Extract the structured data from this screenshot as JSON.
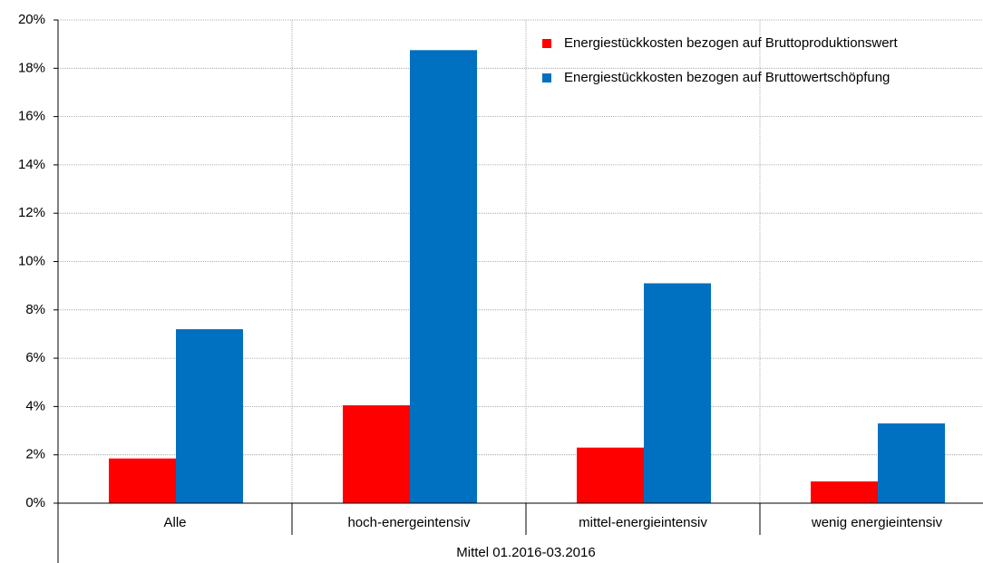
{
  "chart_data": {
    "type": "bar",
    "categories": [
      "Alle",
      "hoch-energeintensiv",
      "mittel-energieintensiv",
      "wenig energieintensiv"
    ],
    "xlabel": "Mittel 01.2016-03.2016",
    "series": [
      {
        "name": "Energiestückkosten bezogen auf Bruttoproduktionswert",
        "color": "#ff0000",
        "values": [
          1.85,
          4.05,
          2.3,
          0.9
        ]
      },
      {
        "name": "Energiestückkosten bezogen auf Bruttowertschöpfung",
        "color": "#0070c0",
        "values": [
          7.2,
          18.75,
          9.1,
          3.3
        ]
      }
    ],
    "ylim": [
      0,
      20
    ],
    "yticks": [
      {
        "value": 0,
        "label": "0%"
      },
      {
        "value": 2,
        "label": "2%"
      },
      {
        "value": 4,
        "label": "4%"
      },
      {
        "value": 6,
        "label": "6%"
      },
      {
        "value": 8,
        "label": "8%"
      },
      {
        "value": 10,
        "label": "10%"
      },
      {
        "value": 12,
        "label": "12%"
      },
      {
        "value": 14,
        "label": "14%"
      },
      {
        "value": 16,
        "label": "16%"
      },
      {
        "value": 18,
        "label": "18%"
      },
      {
        "value": 20,
        "label": "20%"
      }
    ],
    "grid": true,
    "legend": "upper right"
  }
}
